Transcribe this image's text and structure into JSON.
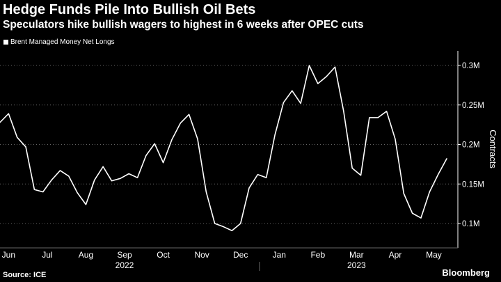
{
  "header": {
    "title": "Hedge Funds Pile Into Bullish Oil Bets",
    "subtitle": "Speculators hike bullish wagers to highest in 6 weeks after OPEC cuts"
  },
  "footer": {
    "source": "Source: ICE",
    "brand": "Bloomberg"
  },
  "colors": {
    "background": "#000000",
    "line": "#ffffff",
    "grid": "#666666",
    "text": "#ffffff"
  },
  "chart_data": {
    "type": "line",
    "title": "Hedge Funds Pile Into Bullish Oil Bets",
    "subtitle": "Speculators hike bullish wagers to highest in 6 weeks after OPEC cuts",
    "ylabel": "Contracts",
    "y_axis_position": "right",
    "ylim": [
      0.07,
      0.33
    ],
    "y_ticks": [
      0.1,
      0.15,
      0.2,
      0.25,
      0.3
    ],
    "y_tick_labels": [
      "0.1M",
      "0.15M",
      "0.2M",
      "0.25M",
      "0.3M"
    ],
    "grid": "horizontal dotted",
    "legend_position": "top-left",
    "x_labels": [
      "Jun",
      "Jul",
      "Aug",
      "Sep",
      "Oct",
      "Nov",
      "Dec",
      "Jan",
      "Feb",
      "Mar",
      "Apr",
      "May"
    ],
    "x_label_weeks": [
      1,
      5.5,
      10,
      14.5,
      19,
      23.5,
      28,
      32.5,
      37,
      41.5,
      46,
      50.5
    ],
    "year_labels": [
      {
        "label": "2022",
        "week": 14.5
      },
      {
        "label": "2023",
        "week": 41.5
      }
    ],
    "year_separator_week": 30.2,
    "series": [
      {
        "name": "Brent Managed Money Net Longs",
        "unit": "million contracts",
        "values": [
          0.228,
          0.239,
          0.209,
          0.197,
          0.143,
          0.14,
          0.155,
          0.167,
          0.16,
          0.139,
          0.124,
          0.155,
          0.172,
          0.154,
          0.157,
          0.163,
          0.158,
          0.186,
          0.201,
          0.177,
          0.206,
          0.227,
          0.238,
          0.207,
          0.14,
          0.1,
          0.096,
          0.091,
          0.1,
          0.145,
          0.162,
          0.158,
          0.212,
          0.253,
          0.268,
          0.252,
          0.3,
          0.277,
          0.286,
          0.298,
          0.242,
          0.17,
          0.161,
          0.234,
          0.234,
          0.242,
          0.207,
          0.138,
          0.113,
          0.107,
          0.14,
          0.162,
          0.182
        ]
      }
    ]
  }
}
